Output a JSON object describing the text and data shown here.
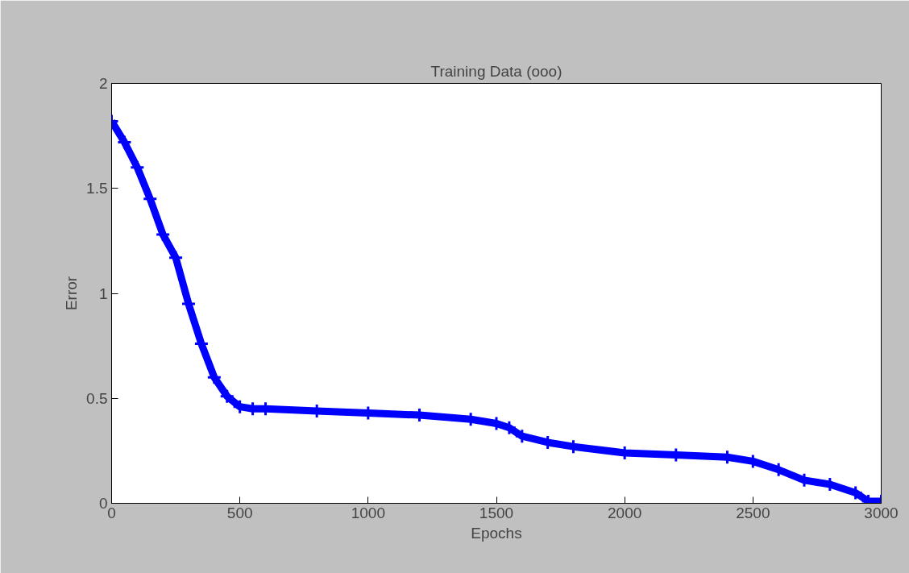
{
  "chart_data": {
    "type": "line",
    "title": "Training Data (ooo)",
    "xlabel": "Epochs",
    "ylabel": "Error",
    "x": [
      0,
      50,
      100,
      150,
      200,
      250,
      300,
      350,
      400,
      450,
      500,
      550,
      600,
      800,
      1000,
      1200,
      1400,
      1500,
      1550,
      1600,
      1700,
      1800,
      2000,
      2200,
      2400,
      2500,
      2600,
      2700,
      2800,
      2900,
      2950,
      3000
    ],
    "series": [
      {
        "color": "#0000ff",
        "values": [
          1.82,
          1.72,
          1.6,
          1.45,
          1.28,
          1.17,
          0.95,
          0.76,
          0.6,
          0.51,
          0.46,
          0.45,
          0.45,
          0.44,
          0.43,
          0.42,
          0.4,
          0.38,
          0.36,
          0.32,
          0.29,
          0.27,
          0.24,
          0.23,
          0.22,
          0.2,
          0.16,
          0.11,
          0.09,
          0.05,
          0.01,
          0.01
        ]
      }
    ],
    "xlim": [
      0,
      3000
    ],
    "ylim": [
      0,
      2
    ],
    "xticks": [
      0,
      500,
      1000,
      1500,
      2000,
      2500,
      3000
    ],
    "yticks": [
      0,
      0.5,
      1,
      1.5,
      2
    ],
    "grid": false,
    "marker": "cross",
    "line_style": "solid"
  }
}
